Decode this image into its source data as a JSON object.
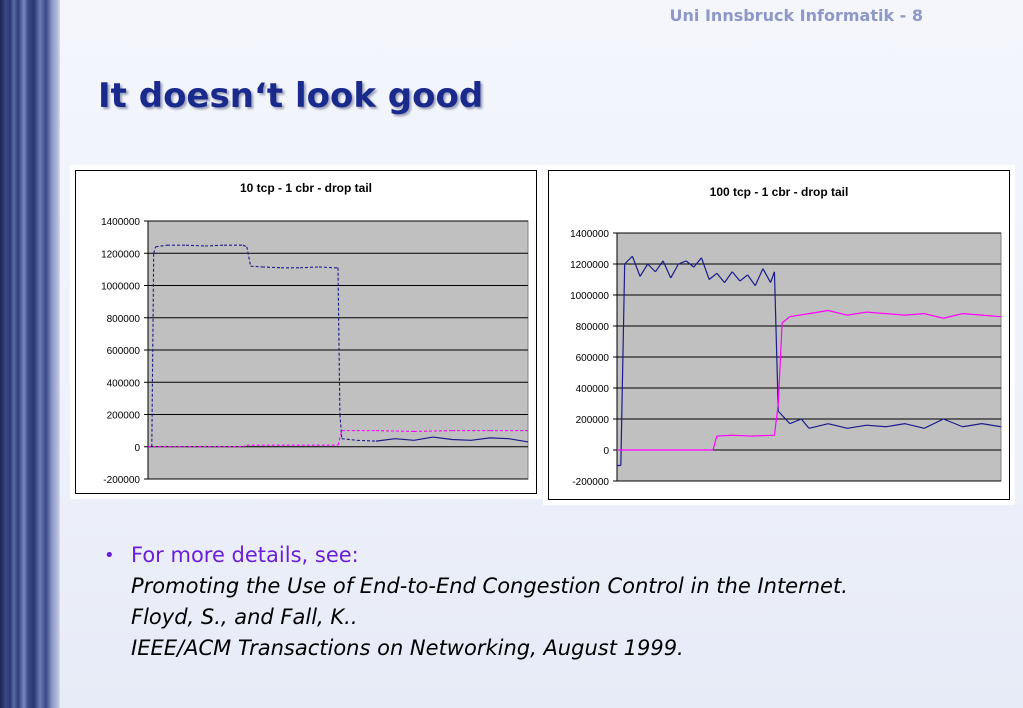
{
  "slide": {
    "header": "Uni Innsbruck Informatik - 8",
    "title": "It doesn‘t look good"
  },
  "bullet": {
    "marker": "•",
    "intro": "For more details, see:",
    "lines": [
      "Promoting the Use of End-to-End Congestion Control in the Internet.",
      "Floyd, S., and Fall, K..",
      "IEEE/ACM Transactions on Networking, August 1999."
    ]
  },
  "colors": {
    "tcp": "#1c1c8c",
    "cbr": "#ff00ff",
    "plot_bg": "#c0c0c0"
  },
  "chart_data": [
    {
      "type": "line",
      "title": "10 tcp - 1 cbr - drop tail",
      "ylim": [
        -200000,
        1400000
      ],
      "yticks": [
        "1400000",
        "1200000",
        "1000000",
        "800000",
        "600000",
        "400000",
        "200000",
        "0",
        "-200000"
      ],
      "grid": true,
      "series": [
        {
          "color": "#1c1c8c",
          "dashed_from": 0.0,
          "dashed_to": 0.59,
          "points": [
            [
              0,
              0
            ],
            [
              0.01,
              0
            ],
            [
              0.015,
              1200000
            ],
            [
              0.02,
              1240000
            ],
            [
              0.05,
              1250000
            ],
            [
              0.1,
              1250000
            ],
            [
              0.15,
              1245000
            ],
            [
              0.2,
              1250000
            ],
            [
              0.25,
              1250000
            ],
            [
              0.26,
              1240000
            ],
            [
              0.27,
              1120000
            ],
            [
              0.3,
              1115000
            ],
            [
              0.35,
              1110000
            ],
            [
              0.4,
              1110000
            ],
            [
              0.45,
              1115000
            ],
            [
              0.49,
              1110000
            ],
            [
              0.5,
              1110000
            ],
            [
              0.505,
              200000
            ],
            [
              0.51,
              50000
            ],
            [
              0.55,
              40000
            ],
            [
              0.6,
              35000
            ],
            [
              0.65,
              50000
            ],
            [
              0.7,
              40000
            ],
            [
              0.75,
              60000
            ],
            [
              0.8,
              45000
            ],
            [
              0.85,
              40000
            ],
            [
              0.9,
              55000
            ],
            [
              0.95,
              50000
            ],
            [
              1.0,
              30000
            ]
          ]
        },
        {
          "color": "#ff00ff",
          "dashed_from": 0.0,
          "dashed_to": 1.0,
          "points": [
            [
              0,
              0
            ],
            [
              0.25,
              0
            ],
            [
              0.26,
              10000
            ],
            [
              0.5,
              10000
            ],
            [
              0.51,
              100000
            ],
            [
              0.6,
              100000
            ],
            [
              0.7,
              95000
            ],
            [
              0.8,
              100000
            ],
            [
              0.9,
              100000
            ],
            [
              1.0,
              100000
            ]
          ]
        }
      ]
    },
    {
      "type": "line",
      "title": "100 tcp - 1 cbr - drop tail",
      "ylim": [
        -200000,
        1400000
      ],
      "yticks": [
        "1400000",
        "1200000",
        "1000000",
        "800000",
        "600000",
        "400000",
        "200000",
        "0",
        "-200000"
      ],
      "grid": true,
      "series": [
        {
          "color": "#1c1c8c",
          "dashed_from": 2,
          "dashed_to": 2,
          "points": [
            [
              0,
              -100000
            ],
            [
              0.01,
              -100000
            ],
            [
              0.02,
              1200000
            ],
            [
              0.04,
              1250000
            ],
            [
              0.06,
              1120000
            ],
            [
              0.08,
              1200000
            ],
            [
              0.1,
              1150000
            ],
            [
              0.12,
              1220000
            ],
            [
              0.14,
              1110000
            ],
            [
              0.16,
              1200000
            ],
            [
              0.18,
              1220000
            ],
            [
              0.2,
              1180000
            ],
            [
              0.22,
              1240000
            ],
            [
              0.24,
              1100000
            ],
            [
              0.26,
              1140000
            ],
            [
              0.28,
              1080000
            ],
            [
              0.3,
              1150000
            ],
            [
              0.32,
              1090000
            ],
            [
              0.34,
              1130000
            ],
            [
              0.36,
              1060000
            ],
            [
              0.38,
              1170000
            ],
            [
              0.4,
              1080000
            ],
            [
              0.41,
              1150000
            ],
            [
              0.42,
              250000
            ],
            [
              0.45,
              170000
            ],
            [
              0.48,
              200000
            ],
            [
              0.5,
              140000
            ],
            [
              0.55,
              170000
            ],
            [
              0.6,
              140000
            ],
            [
              0.65,
              160000
            ],
            [
              0.7,
              150000
            ],
            [
              0.75,
              170000
            ],
            [
              0.8,
              140000
            ],
            [
              0.85,
              200000
            ],
            [
              0.9,
              150000
            ],
            [
              0.95,
              170000
            ],
            [
              1.0,
              150000
            ]
          ]
        },
        {
          "color": "#ff00ff",
          "dashed_from": 2,
          "dashed_to": 2,
          "points": [
            [
              0,
              0
            ],
            [
              0.25,
              0
            ],
            [
              0.26,
              90000
            ],
            [
              0.3,
              95000
            ],
            [
              0.35,
              90000
            ],
            [
              0.41,
              95000
            ],
            [
              0.42,
              300000
            ],
            [
              0.43,
              820000
            ],
            [
              0.45,
              860000
            ],
            [
              0.5,
              880000
            ],
            [
              0.55,
              900000
            ],
            [
              0.6,
              870000
            ],
            [
              0.65,
              890000
            ],
            [
              0.7,
              880000
            ],
            [
              0.75,
              870000
            ],
            [
              0.8,
              880000
            ],
            [
              0.85,
              850000
            ],
            [
              0.9,
              880000
            ],
            [
              0.95,
              870000
            ],
            [
              1.0,
              860000
            ]
          ]
        }
      ]
    }
  ]
}
